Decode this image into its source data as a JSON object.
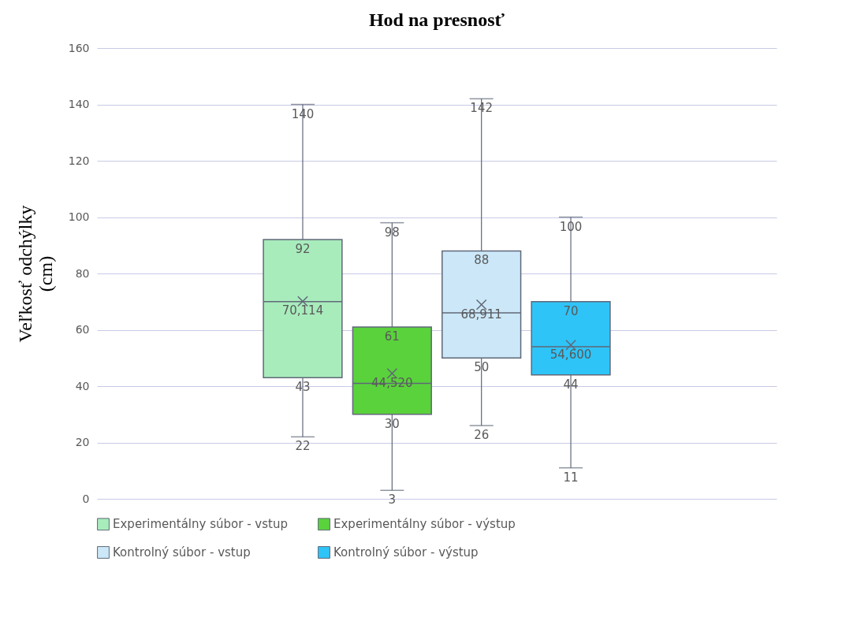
{
  "chart_data": {
    "type": "box",
    "title": "Hod na presnosť",
    "ylabel": "Veľkosť odchýlky (cm)",
    "categories": [
      null
    ],
    "ylim": [
      0,
      160
    ],
    "yticks": [
      0,
      20,
      40,
      60,
      80,
      100,
      120,
      140,
      160
    ],
    "grid": "y",
    "legend": "bottom",
    "tick_labels": "y",
    "marker": "cross",
    "annotations": [
      {
        "text": "22",
        "y": 22
      },
      {
        "text": "43",
        "y": 43
      },
      {
        "text": "92",
        "y": 92
      },
      {
        "text": "140",
        "y": 140
      },
      {
        "text": "70,114",
        "y": 70.114
      },
      {
        "text": "3",
        "y": 3
      },
      {
        "text": "30",
        "y": 30
      },
      {
        "text": "61",
        "y": 61
      },
      {
        "text": "98",
        "y": 98
      },
      {
        "text": "44,520",
        "y": 44.52
      },
      {
        "text": "26",
        "y": 26
      },
      {
        "text": "50",
        "y": 50
      },
      {
        "text": "88",
        "y": 88
      },
      {
        "text": "142",
        "y": 142
      },
      {
        "text": "68,911",
        "y": 68.911
      },
      {
        "text": "11",
        "y": 11
      },
      {
        "text": "44",
        "y": 44
      },
      {
        "text": "70",
        "y": 70
      },
      {
        "text": "100",
        "y": 100
      },
      {
        "text": "54,600",
        "y": 54.6
      }
    ],
    "series": [
      {
        "name": "Experimentálny súbor - vstup",
        "color": "#a8ecbc",
        "boxes": [
          {
            "low": 22,
            "q1": 43,
            "median": 70,
            "q3": 92,
            "high": 140,
            "mean": 70.114
          }
        ]
      },
      {
        "name": "Experimentálny súbor - výstup",
        "color": "#5ad23c",
        "boxes": [
          {
            "low": 3,
            "q1": 30,
            "median": 41,
            "q3": 61,
            "high": 98,
            "mean": 44.52
          }
        ]
      },
      {
        "name": "Kontrolný súbor - vstup",
        "color": "#cce8f8",
        "boxes": [
          {
            "low": 26,
            "q1": 50,
            "median": 66,
            "q3": 88,
            "high": 142,
            "mean": 68.911
          }
        ]
      },
      {
        "name": "Kontrolný súbor - výstup",
        "color": "#2ec4f8",
        "boxes": [
          {
            "low": 11,
            "q1": 44,
            "median": 54,
            "q3": 70,
            "high": 100,
            "mean": 54.6
          }
        ]
      }
    ]
  }
}
